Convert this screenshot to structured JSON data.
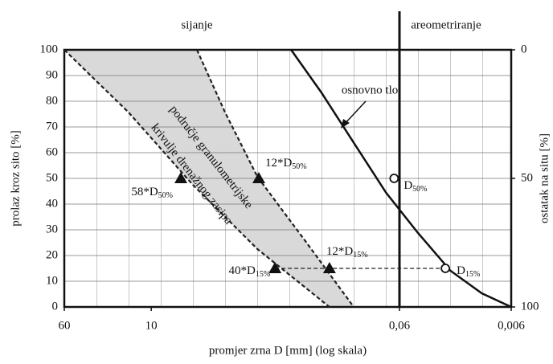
{
  "chart_data": {
    "type": "line",
    "top_labels": [
      "sijanje",
      "areometriranje"
    ],
    "zone_boundary": 0.06,
    "xlabel": "promjer zrna D [mm] (log skala)",
    "ylabel": "prolaz kroz sito [%]",
    "y2label": "ostatak na situ [%]",
    "xscale": "log",
    "xlim": [
      60,
      0.006
    ],
    "xticks": [
      60,
      10,
      {
        "value": 0.06,
        "label": "0,06"
      },
      {
        "value": 0.006,
        "label": "0,006"
      }
    ],
    "ylim": [
      0,
      100
    ],
    "yticks": [
      0,
      10,
      20,
      30,
      40,
      50,
      60,
      70,
      80,
      90,
      100
    ],
    "y2lim": [
      100,
      0
    ],
    "y2ticks": [
      0,
      50,
      100
    ],
    "grid": true,
    "band_color": "#d9d9d9",
    "band_label": [
      "područje granulometrijske",
      "krivulje drenažnog zasipa"
    ],
    "series": [
      {
        "name": "osnovno tlo",
        "color": "#111111",
        "style": "solid",
        "x": [
          0.56,
          0.3,
          0.15,
          0.079,
          0.041,
          0.021,
          0.011,
          0.006
        ],
        "values": [
          100,
          83.4,
          63.1,
          44.4,
          28.8,
          14.1,
          5.3,
          0
        ]
      },
      {
        "color": "#222222",
        "style": "dashed",
        "x": [
          60,
          15.9,
          4.24,
          1.12,
          0.254
        ],
        "values": [
          100,
          75.6,
          47.5,
          22.5,
          0
        ]
      },
      {
        "color": "#222222",
        "style": "dashed",
        "x": [
          3.9,
          2.18,
          1.12,
          0.417,
          0.154
        ],
        "values": [
          100,
          75.6,
          50.6,
          25.6,
          0
        ]
      }
    ],
    "points": [
      {
        "text": "58*D",
        "sub": "50%",
        "marker": "triangle",
        "x": 5.43,
        "y": 50
      },
      {
        "text": "12*D",
        "sub": "50%",
        "marker": "triangle",
        "x": 1.09,
        "y": 50
      },
      {
        "text": "40*D",
        "sub": "15%",
        "marker": "triangle",
        "x": 0.78,
        "y": 15
      },
      {
        "text": "12*D",
        "sub": "15%",
        "marker": "triangle",
        "x": 0.254,
        "y": 15
      },
      {
        "text": "D",
        "sub": "50%",
        "marker": "circle",
        "x": 0.067,
        "y": 50
      },
      {
        "text": "D",
        "sub": "15%",
        "marker": "circle",
        "x": 0.0233,
        "y": 15
      }
    ]
  }
}
